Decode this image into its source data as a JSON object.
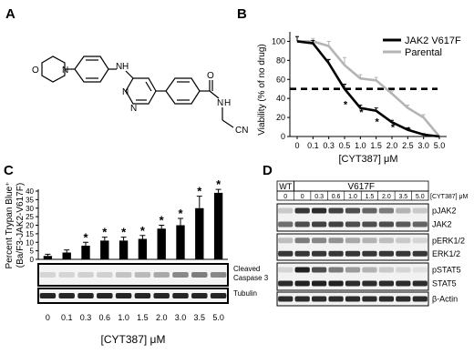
{
  "figure": {
    "panel_labels": {
      "a": "A",
      "b": "B",
      "c": "C",
      "d": "D"
    }
  },
  "structure": {
    "atoms": {
      "o": "O",
      "n1": "N",
      "nh1": "H",
      "n_ring_a": "N",
      "n_ring_b": "N",
      "o2": "O",
      "nh2_n": "N",
      "nh2_h": "H",
      "cn": "CN"
    },
    "description": ""
  },
  "chart_data": [
    {
      "panel": "B",
      "type": "line",
      "title": "",
      "xlabel": "[CYT387] μM",
      "ylabel": "Viability (% of no drug)",
      "x": [
        "0",
        "0.1",
        "0.3",
        "0.5",
        "1.0",
        "1.5",
        "2.0",
        "2.5",
        "3.0",
        "5.0"
      ],
      "yticks": [
        "0",
        "20",
        "40",
        "60",
        "80",
        "100"
      ],
      "ylim": [
        0,
        110
      ],
      "legend_position": "top-right",
      "reference_line": {
        "y": 50,
        "style": "dashed"
      },
      "series": [
        {
          "name": "JAK2 V617F",
          "color": "#000000",
          "values": [
            100,
            98,
            77,
            50,
            30,
            27,
            15,
            7,
            2,
            0
          ],
          "errors": [
            5,
            3,
            4,
            5,
            3,
            3,
            2,
            2,
            1,
            0
          ],
          "stars_at": [
            "0.5",
            "1.0",
            "1.5",
            "2.0",
            "2.5"
          ],
          "star_y": [
            32,
            24,
            14,
            8,
            5
          ]
        },
        {
          "name": "Parental",
          "color": "#b4b4b4",
          "values": [
            100,
            100,
            95,
            75,
            61,
            59,
            45,
            30,
            20,
            0
          ],
          "errors": [
            5,
            3,
            5,
            8,
            4,
            3,
            3,
            3,
            3,
            0
          ]
        }
      ],
      "star_label": "*"
    },
    {
      "panel": "C",
      "type": "bar",
      "title": "",
      "xlabel": "[CYT387] μM",
      "ylabel": "Percent Trypan Blue⁺",
      "ylabel2": "(Ba/F3-JAK2-V617F)",
      "categories": [
        "0",
        "0.1",
        "0.3",
        "0.6",
        "1.0",
        "1.5",
        "2.0",
        "3.0",
        "3.5",
        "5.0"
      ],
      "values": [
        2,
        4,
        8,
        11,
        11,
        12,
        18,
        20,
        30,
        39
      ],
      "errors": [
        1,
        1.5,
        2,
        2,
        2,
        2,
        2,
        4,
        7,
        2
      ],
      "stars": [
        false,
        false,
        true,
        true,
        true,
        true,
        true,
        true,
        true,
        true
      ],
      "yticks": [
        "0",
        "5",
        "10",
        "15",
        "20",
        "25",
        "30",
        "35",
        "40"
      ],
      "ylim": [
        0,
        40
      ],
      "star_label": "*",
      "blots": [
        {
          "label1": "Cleaved",
          "label2": "Caspase 3",
          "intensity": [
            0.1,
            0.1,
            0.12,
            0.12,
            0.18,
            0.22,
            0.3,
            0.45,
            0.5,
            0.45
          ]
        },
        {
          "label1": "Tubulin",
          "label2": "",
          "intensity": [
            0.9,
            0.9,
            0.9,
            0.9,
            0.9,
            0.9,
            0.9,
            0.9,
            0.9,
            0.9
          ]
        }
      ]
    }
  ],
  "blot_d": {
    "group_labels": {
      "wt": "WT",
      "mutant": "V617F"
    },
    "lanes": [
      "0",
      "0",
      "0.3",
      "0.6",
      "1.0",
      "1.5",
      "2.0",
      "3.5",
      "5.0"
    ],
    "conc_label": "[CYT387] μM",
    "rows": [
      {
        "label": "pJAK2",
        "intensity": [
          0.15,
          0.8,
          0.85,
          0.75,
          0.7,
          0.6,
          0.5,
          0.25,
          0.15
        ]
      },
      {
        "label": "JAK2",
        "intensity": [
          0.55,
          0.7,
          0.75,
          0.75,
          0.7,
          0.7,
          0.7,
          0.65,
          0.6
        ]
      },
      {
        "label": "pERK1/2",
        "intensity": [
          0.2,
          0.5,
          0.45,
          0.4,
          0.3,
          0.25,
          0.2,
          0.15,
          0.1
        ]
      },
      {
        "label": "ERK1/2",
        "intensity": [
          0.8,
          0.8,
          0.8,
          0.8,
          0.8,
          0.8,
          0.8,
          0.8,
          0.8
        ]
      },
      {
        "label": "pSTAT5",
        "intensity": [
          0.1,
          0.9,
          0.7,
          0.5,
          0.35,
          0.25,
          0.15,
          0.1,
          0.05
        ]
      },
      {
        "label": "STAT5",
        "intensity": [
          0.85,
          0.9,
          0.9,
          0.9,
          0.85,
          0.85,
          0.85,
          0.85,
          0.85
        ]
      },
      {
        "label": "β-Actin",
        "intensity": [
          0.85,
          0.85,
          0.85,
          0.85,
          0.85,
          0.85,
          0.85,
          0.85,
          0.85
        ]
      }
    ]
  }
}
